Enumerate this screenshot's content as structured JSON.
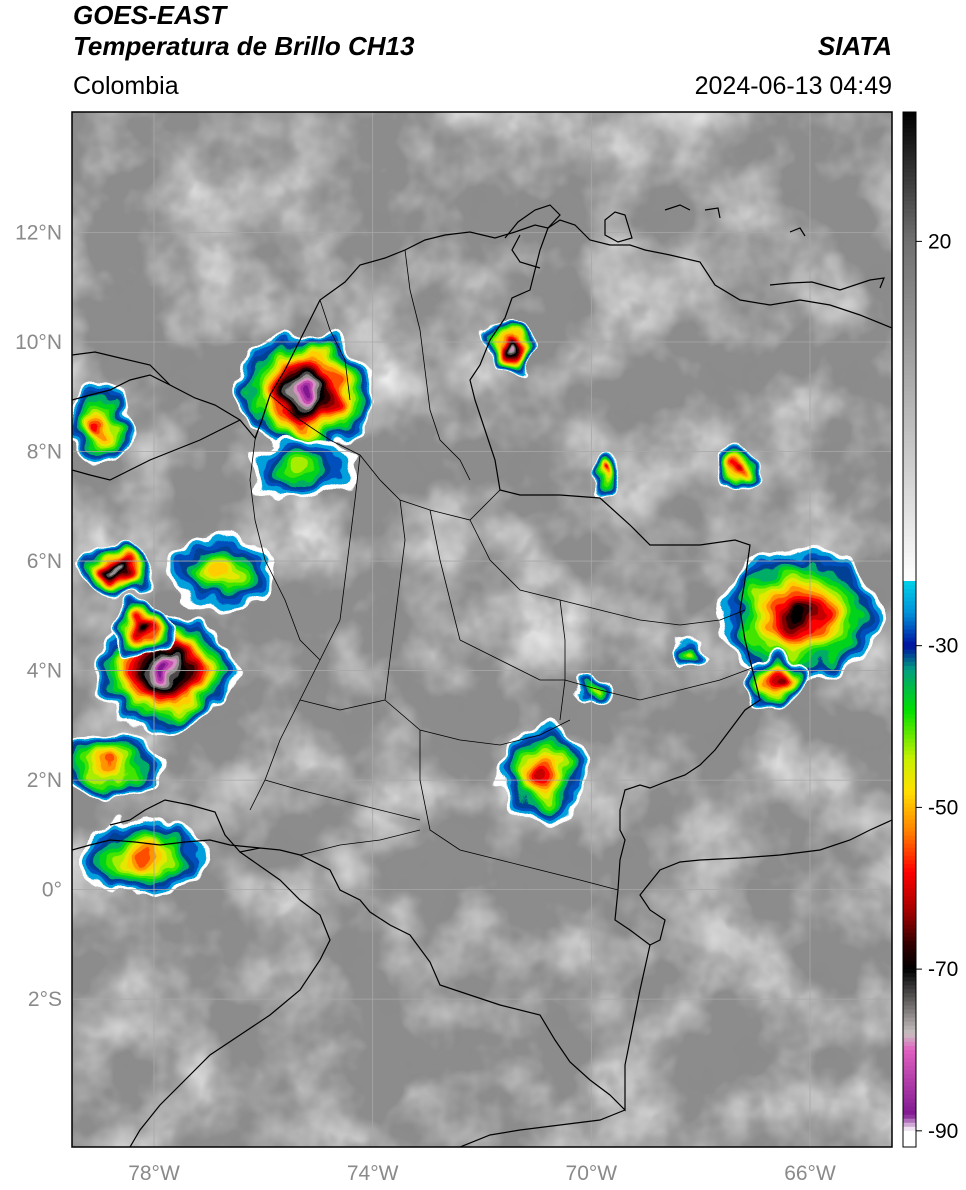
{
  "header": {
    "satellite": "GOES-EAST",
    "product": "Temperatura de Brillo CH13",
    "institution": "SIATA",
    "region": "Colombia",
    "timestamp": "2024-06-13 04:49"
  },
  "map": {
    "lon_range": [
      -79.5,
      -64.5
    ],
    "lat_range": [
      -4.7,
      14.2
    ],
    "lat_ticks": [
      {
        "value": 12,
        "label": "12°N"
      },
      {
        "value": 10,
        "label": "10°N"
      },
      {
        "value": 8,
        "label": "8°N"
      },
      {
        "value": 6,
        "label": "6°N"
      },
      {
        "value": 4,
        "label": "4°N"
      },
      {
        "value": 2,
        "label": "2°N"
      },
      {
        "value": 0,
        "label": "0°"
      },
      {
        "value": -2,
        "label": "2°S"
      }
    ],
    "lon_ticks": [
      {
        "value": -78,
        "label": "78°W"
      },
      {
        "value": -74,
        "label": "74°W"
      },
      {
        "value": -70,
        "label": "70°W"
      },
      {
        "value": -66,
        "label": "66°W"
      }
    ],
    "background_color": "#8c8c8c",
    "gridline_color": "#a8a8a8",
    "storm_cells": [
      {
        "lon": -75.2,
        "lat": 9.1,
        "rx": 1.25,
        "ry": 1.1,
        "min_temp": -88
      },
      {
        "lon": -71.5,
        "lat": 9.9,
        "rx": 0.5,
        "ry": 0.5,
        "min_temp": -80
      },
      {
        "lon": -78.7,
        "lat": 5.8,
        "rx": 0.7,
        "ry": 0.5,
        "min_temp": -78
      },
      {
        "lon": -77.8,
        "lat": 4.0,
        "rx": 1.25,
        "ry": 1.1,
        "min_temp": -88
      },
      {
        "lon": -78.2,
        "lat": 4.8,
        "rx": 0.6,
        "ry": 0.5,
        "min_temp": -70
      },
      {
        "lon": -66.2,
        "lat": 5.0,
        "rx": 1.5,
        "ry": 1.2,
        "min_temp": -72
      },
      {
        "lon": -66.6,
        "lat": 3.8,
        "rx": 0.6,
        "ry": 0.5,
        "min_temp": -65
      },
      {
        "lon": -70.9,
        "lat": 2.1,
        "rx": 0.8,
        "ry": 0.9,
        "min_temp": -62
      },
      {
        "lon": -78.2,
        "lat": 0.6,
        "rx": 1.2,
        "ry": 0.7,
        "min_temp": -55
      },
      {
        "lon": -79.0,
        "lat": 8.5,
        "rx": 0.6,
        "ry": 0.8,
        "min_temp": -60
      },
      {
        "lon": -78.8,
        "lat": 2.3,
        "rx": 1.0,
        "ry": 0.6,
        "min_temp": -55
      },
      {
        "lon": -76.8,
        "lat": 5.8,
        "rx": 1.0,
        "ry": 0.7,
        "min_temp": -50
      },
      {
        "lon": -67.3,
        "lat": 7.7,
        "rx": 0.4,
        "ry": 0.4,
        "min_temp": -62
      },
      {
        "lon": -69.7,
        "lat": 7.6,
        "rx": 0.3,
        "ry": 0.4,
        "min_temp": -58
      },
      {
        "lon": -75.3,
        "lat": 7.7,
        "rx": 1.0,
        "ry": 0.6,
        "min_temp": -45
      },
      {
        "lon": -68.2,
        "lat": 4.3,
        "rx": 0.4,
        "ry": 0.3,
        "min_temp": -45
      },
      {
        "lon": -70.0,
        "lat": 3.6,
        "rx": 0.3,
        "ry": 0.3,
        "min_temp": -45
      }
    ]
  },
  "colorbar": {
    "range": [
      -92,
      36
    ],
    "ticks": [
      {
        "value": 20,
        "label": "20"
      },
      {
        "value": -30,
        "label": "-30"
      },
      {
        "value": -50,
        "label": "-50"
      },
      {
        "value": -70,
        "label": "-70"
      },
      {
        "value": -90,
        "label": "-90"
      }
    ],
    "stops": [
      {
        "temp": 36,
        "color": "#000000"
      },
      {
        "temp": 20,
        "color": "#707070"
      },
      {
        "temp": -22,
        "color": "#ffffff"
      },
      {
        "temp": -22.1,
        "color": "#00d0e8"
      },
      {
        "temp": -26,
        "color": "#0090d8"
      },
      {
        "temp": -30,
        "color": "#0010a0"
      },
      {
        "temp": -33,
        "color": "#00a080"
      },
      {
        "temp": -38,
        "color": "#00e000"
      },
      {
        "temp": -44,
        "color": "#c8f000"
      },
      {
        "temp": -48,
        "color": "#ffe000"
      },
      {
        "temp": -53,
        "color": "#ff8000"
      },
      {
        "temp": -58,
        "color": "#ff0000"
      },
      {
        "temp": -63,
        "color": "#a00000"
      },
      {
        "temp": -67,
        "color": "#300000"
      },
      {
        "temp": -70,
        "color": "#000000"
      },
      {
        "temp": -78,
        "color": "#c8c0c0"
      },
      {
        "temp": -80,
        "color": "#e060c0"
      },
      {
        "temp": -88,
        "color": "#801890"
      },
      {
        "temp": -90,
        "color": "#ffffff"
      }
    ]
  }
}
